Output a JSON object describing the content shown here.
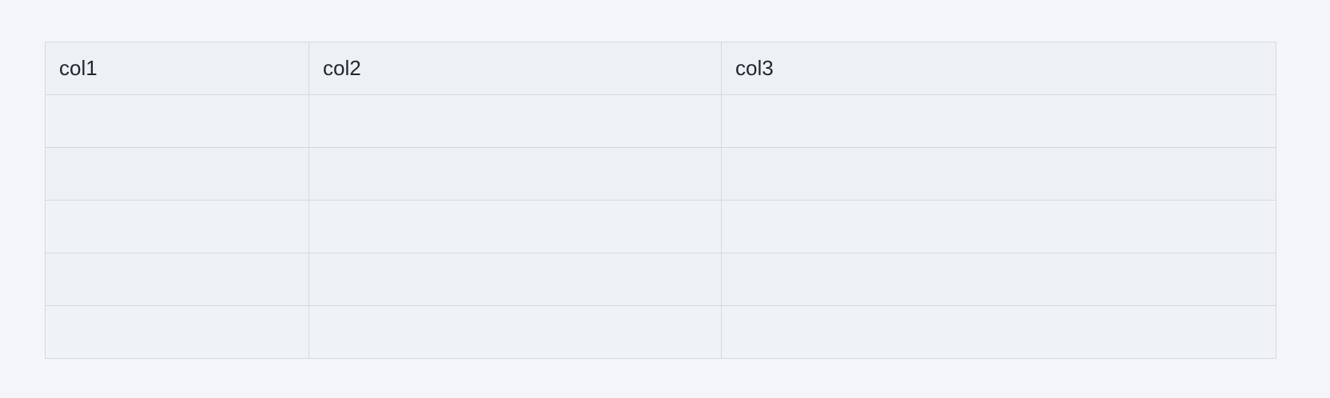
{
  "table": {
    "columns": [
      "col1",
      "col2",
      "col3"
    ],
    "rows": [
      [
        "",
        "",
        ""
      ],
      [
        "",
        "",
        ""
      ],
      [
        "",
        "",
        ""
      ],
      [
        "",
        "",
        ""
      ],
      [
        "",
        "",
        ""
      ]
    ]
  },
  "colors": {
    "page_background": "#f4f5f8",
    "header_background": "#edf0f4",
    "row_background_light": "#f0f3f5",
    "row_background_dark": "#edf0f4",
    "border": "#d5d9df",
    "text": "#23272d"
  }
}
